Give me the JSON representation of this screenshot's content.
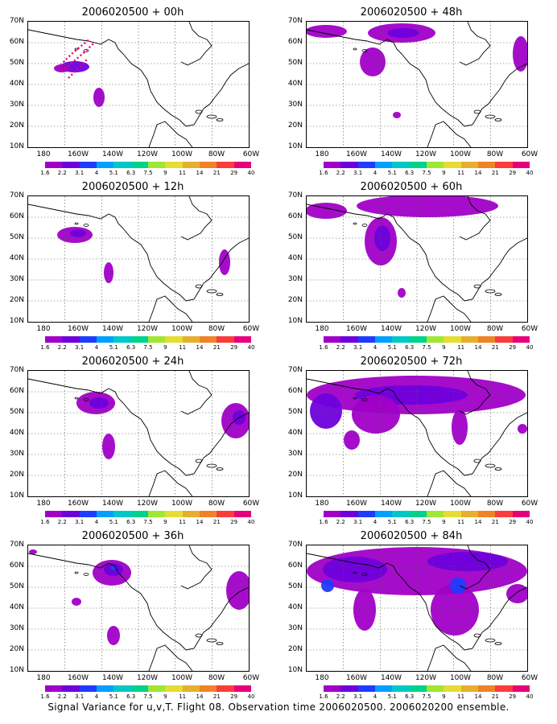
{
  "caption": "Signal Variance for u,v,T. Flight 08. Observation time 2006020500. 2006020200 ensemble.",
  "lat_labels": [
    "70N",
    "60N",
    "50N",
    "40N",
    "30N",
    "20N",
    "10N"
  ],
  "lon_labels": [
    "180",
    "160W",
    "140W",
    "120W",
    "100W",
    "80W",
    "60W"
  ],
  "colorbar": {
    "colors": [
      "#a000c8",
      "#6e00dc",
      "#1e3cff",
      "#00a0ff",
      "#00c8c8",
      "#00d28c",
      "#a0e632",
      "#e6dc32",
      "#e6af2d",
      "#f08228",
      "#fa3c3c",
      "#e6007a"
    ],
    "labels": [
      "1.6",
      "2.2",
      "3.1",
      "4",
      "5.1",
      "6.3",
      "7.5",
      "9",
      "11",
      "14",
      "21",
      "29",
      "40"
    ]
  },
  "panels": [
    {
      "title": "2006020500 + 00h",
      "column": "left",
      "row": 0
    },
    {
      "title": "2006020500 + 12h",
      "column": "left",
      "row": 1
    },
    {
      "title": "2006020500 + 24h",
      "column": "left",
      "row": 2
    },
    {
      "title": "2006020500 + 36h",
      "column": "left",
      "row": 3
    },
    {
      "title": "2006020500 + 48h",
      "column": "right",
      "row": 0
    },
    {
      "title": "2006020500 + 60h",
      "column": "right",
      "row": 1
    },
    {
      "title": "2006020500 + 72h",
      "column": "right",
      "row": 2
    },
    {
      "title": "2006020500 + 84h",
      "column": "right",
      "row": 3
    }
  ],
  "legend_colors": {
    "land_outline": "#000000",
    "low_variance": "#a000c8",
    "mid_variance": "#6e00dc",
    "high_variance": "#1e3cff",
    "observation_track": "#e6007a"
  }
}
